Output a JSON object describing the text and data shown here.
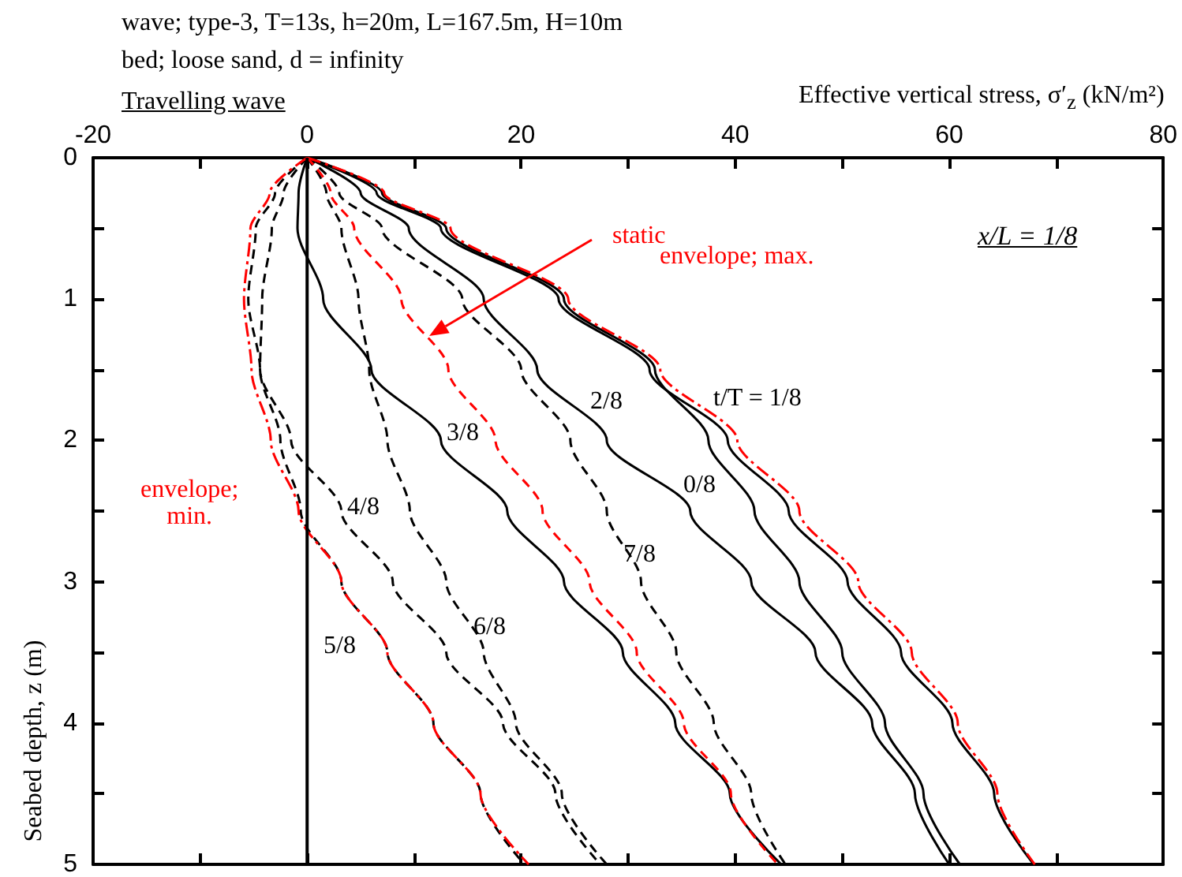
{
  "chart_data": {
    "type": "line",
    "title": "wave; type-3, T=13s, h=20m, L=167.5m, H=10m",
    "subtitle": "bed; loose sand, d = infinity",
    "xlabel": "Effective vertical stress, σ′$_{z}$ (kN/m²)",
    "ylabel": "Seabed depth, z (m)",
    "xlim": [
      -20,
      80
    ],
    "xticks": [
      -20,
      {
        "value": -10,
        "label": null
      },
      0,
      {
        "value": 10,
        "label": null
      },
      20,
      {
        "value": 30,
        "label": null
      },
      40,
      {
        "value": 50,
        "label": null
      },
      60,
      {
        "value": 70,
        "label": null
      },
      80
    ],
    "ylim": [
      5,
      0
    ],
    "yticks": [
      0,
      {
        "value": 0.5,
        "label": null
      },
      1,
      {
        "value": 1.5,
        "label": null
      },
      2,
      {
        "value": 2.5,
        "label": null
      },
      3,
      {
        "value": 3.5,
        "label": null
      },
      4,
      {
        "value": 4.5,
        "label": null
      },
      5
    ],
    "grid": false,
    "marker": "none",
    "ref_lines": [
      {
        "axis": "x",
        "value": 0,
        "color": "#000000",
        "line_style": "solid"
      }
    ],
    "series": [
      {
        "color": "#000000",
        "line_style": "solid",
        "x": [
          0,
          7,
          13,
          24,
          32.5,
          37.5,
          41.8,
          46,
          50,
          54,
          57.6,
          61
        ],
        "values": [
          0,
          0.25,
          0.5,
          1,
          1.5,
          2,
          2.5,
          3,
          3.5,
          4,
          4.5,
          5
        ]
      },
      {
        "color": "#000000",
        "line_style": "solid",
        "x": [
          0,
          6.5,
          12.5,
          23.5,
          32,
          39.3,
          45,
          50.5,
          55.5,
          60.3,
          64.2,
          67.9
        ],
        "values": [
          0,
          0.25,
          0.5,
          1,
          1.5,
          2,
          2.5,
          3,
          3.5,
          4,
          4.5,
          5
        ]
      },
      {
        "color": "#000000",
        "line_style": "solid",
        "x": [
          0,
          5,
          9.5,
          16.5,
          21.5,
          28,
          35.8,
          41.5,
          47.5,
          52.8,
          56.8,
          60
        ],
        "values": [
          0,
          0.25,
          0.5,
          1,
          1.5,
          2,
          2.5,
          3,
          3.5,
          4,
          4.5,
          5
        ]
      },
      {
        "color": "#000000",
        "line_style": "solid",
        "x": [
          0,
          -0.8,
          -0.9,
          1.5,
          6,
          12.5,
          18.7,
          24,
          29.5,
          34.4,
          39.5,
          44.3
        ],
        "values": [
          0,
          0.25,
          0.5,
          1,
          1.5,
          2,
          2.5,
          3,
          3.5,
          4,
          4.5,
          5
        ]
      },
      {
        "color": "#000000",
        "line_style": "dashed",
        "x": [
          0,
          -2.2,
          -3.3,
          -4.2,
          -4.4,
          -1.5,
          3.2,
          8,
          13,
          18.3,
          23.2,
          27.4
        ],
        "values": [
          0,
          0.25,
          0.5,
          1,
          1.5,
          2,
          2.5,
          3,
          3.5,
          4,
          4.5,
          5
        ]
      },
      {
        "color": "#000000",
        "line_style": "dashed",
        "x": [
          0,
          -3,
          -4.8,
          -5.5,
          -4.4,
          -2.5,
          -0.6,
          3.2,
          7.5,
          11.8,
          16.2,
          20.3
        ],
        "values": [
          0,
          0.25,
          0.5,
          1,
          1.5,
          2,
          2.5,
          3,
          3.5,
          4,
          4.5,
          5
        ]
      },
      {
        "color": "#000000",
        "line_style": "dashed",
        "x": [
          0,
          1.8,
          3.2,
          4.8,
          5.8,
          7.5,
          9.6,
          13,
          16.5,
          19.5,
          23.8,
          28
        ],
        "values": [
          0,
          0.25,
          0.5,
          1,
          1.5,
          2,
          2.5,
          3,
          3.5,
          4,
          4.5,
          5
        ]
      },
      {
        "color": "#000000",
        "line_style": "dashed",
        "x": [
          0,
          3,
          7,
          14.5,
          20,
          24.6,
          28,
          31.2,
          34.5,
          38,
          41.5,
          44.7
        ],
        "values": [
          0,
          0.25,
          0.5,
          1,
          1.5,
          2,
          2.5,
          3,
          3.5,
          4,
          4.5,
          5
        ]
      },
      {
        "color": "#ff0000",
        "line_style": "dashed",
        "x": [
          0,
          2.2,
          4.4,
          8.8,
          13.2,
          17.6,
          22,
          26.4,
          30.8,
          35.2,
          39.6,
          44
        ],
        "values": [
          0,
          0.25,
          0.5,
          1,
          1.5,
          2,
          2.5,
          3,
          3.5,
          4,
          4.5,
          5
        ]
      },
      {
        "color": "#ff0000",
        "line_style": "dashdot",
        "x": [
          0,
          7.2,
          13.4,
          24.4,
          33,
          40.2,
          46,
          51.5,
          56.5,
          60.8,
          64.5,
          68
        ],
        "values": [
          0,
          0.25,
          0.5,
          1,
          1.5,
          2,
          2.5,
          3,
          3.5,
          4,
          4.5,
          5
        ]
      },
      {
        "color": "#ff0000",
        "line_style": "dashdot",
        "x": [
          0,
          -3.5,
          -5.3,
          -5.9,
          -5.2,
          -3.4,
          -0.8,
          3.2,
          7.5,
          11.8,
          16.2,
          20.7
        ],
        "values": [
          0,
          0.25,
          0.5,
          1,
          1.5,
          2,
          2.5,
          3,
          3.5,
          4,
          4.5,
          5
        ]
      }
    ],
    "annotations": [
      "Travelling wave",
      "x/L = 1/8",
      "static",
      "envelope; max.",
      "t/T = 1/8",
      "2/8",
      "0/8",
      "3/8",
      "4/8",
      "envelope;\nmin.",
      "7/8",
      "6/8",
      "5/8"
    ]
  }
}
